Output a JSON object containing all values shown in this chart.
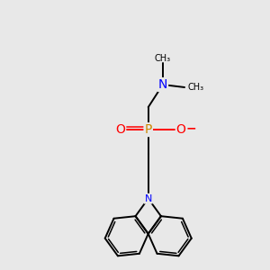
{
  "background_color": "#e8e8e8",
  "atom_colors": {
    "C": "#000000",
    "N": "#0000ff",
    "P": "#cc8800",
    "O": "#ff0000"
  },
  "bond_color": "#000000",
  "figsize": [
    3.0,
    3.0
  ],
  "dpi": 100
}
